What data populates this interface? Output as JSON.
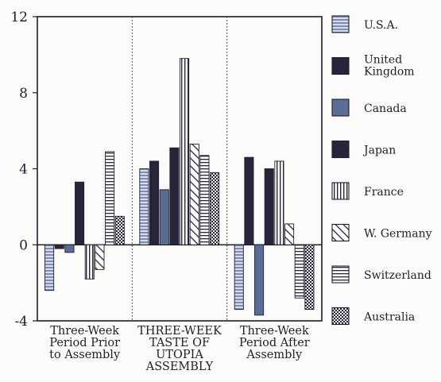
{
  "chart_data": {
    "type": "bar",
    "title": "",
    "xlabel": "",
    "ylabel": "",
    "ylim": [
      -4,
      12
    ],
    "y_ticks": [
      "-4",
      "0",
      "4",
      "8",
      "12"
    ],
    "grid": false,
    "legend_position": "right",
    "categories": [
      [
        "Three-Week",
        "Period Prior",
        "to Assembly"
      ],
      [
        "THREE-WEEK",
        "TASTE OF",
        "UTOPIA",
        "ASSEMBLY"
      ],
      [
        "Three-Week",
        "Period After",
        "Assembly"
      ]
    ],
    "series": [
      {
        "name": "U.S.A.",
        "values": [
          -2.4,
          4.0,
          -3.4
        ],
        "color": "#7b8db5",
        "pattern": "hstripe"
      },
      {
        "name": "United Kingdom",
        "values": [
          -0.2,
          4.4,
          4.6
        ],
        "color": "#27253a",
        "pattern": "solid"
      },
      {
        "name": "Canada",
        "values": [
          -0.4,
          2.9,
          -3.7
        ],
        "color": "#5a6d96",
        "pattern": "solid"
      },
      {
        "name": "Japan",
        "values": [
          3.3,
          5.1,
          4.0
        ],
        "color": "#27253a",
        "pattern": "solid"
      },
      {
        "name": "France",
        "values": [
          -1.8,
          9.8,
          4.4
        ],
        "color": "#27253a",
        "pattern": "vstripe"
      },
      {
        "name": "W. Germany",
        "values": [
          -1.3,
          5.3,
          1.1
        ],
        "color": "#27253a",
        "pattern": "diag"
      },
      {
        "name": "Switzerland",
        "values": [
          4.9,
          4.7,
          -2.8
        ],
        "color": "#27253a",
        "pattern": "hline"
      },
      {
        "name": "Australia",
        "values": [
          1.5,
          3.8,
          -3.4
        ],
        "color": "#27253a",
        "pattern": "cross"
      }
    ]
  }
}
